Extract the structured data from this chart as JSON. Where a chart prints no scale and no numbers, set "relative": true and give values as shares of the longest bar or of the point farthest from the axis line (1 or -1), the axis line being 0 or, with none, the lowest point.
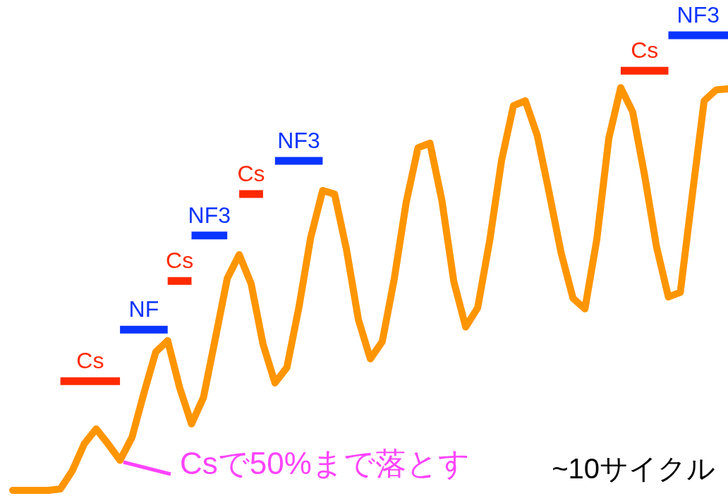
{
  "chart_data": {
    "type": "line",
    "relative": true,
    "categories": [
      null,
      null,
      null,
      null,
      null,
      null,
      null,
      null,
      null,
      null,
      null,
      null,
      null,
      null,
      null,
      null,
      null,
      null,
      null,
      null,
      null,
      null,
      null,
      null,
      null,
      null,
      null,
      null,
      null,
      null,
      null,
      null,
      null,
      null,
      null,
      null,
      null,
      null,
      null,
      null,
      null,
      null,
      null,
      null,
      null,
      null,
      null,
      null,
      null,
      null,
      null,
      null,
      null,
      null,
      null,
      null,
      null,
      null,
      null,
      null,
      null
    ],
    "series": [
      {
        "name": null,
        "color": "#ff9500",
        "values": [
          0,
          0,
          0,
          0,
          0.003,
          0.043,
          0.102,
          0.135,
          0.102,
          0.066,
          0.116,
          0.213,
          0.304,
          0.329,
          0.226,
          0.146,
          0.204,
          0.334,
          0.466,
          0.518,
          0.454,
          0.321,
          0.236,
          0.27,
          0.401,
          0.556,
          0.659,
          0.651,
          0.529,
          0.375,
          0.289,
          0.327,
          0.464,
          0.632,
          0.753,
          0.763,
          0.637,
          0.459,
          0.359,
          0.401,
          0.547,
          0.724,
          0.845,
          0.856,
          0.78,
          0.654,
          0.522,
          0.422,
          0.399,
          0.552,
          0.773,
          0.885,
          0.832,
          0.693,
          0.536,
          0.425,
          0.435,
          0.648,
          0.856,
          0.88,
          0.882
        ]
      },
      {
        "name": "Cs",
        "color": "#ff2a00",
        "values": [
          null,
          null,
          null,
          null,
          0.24,
          0.24,
          0.24,
          0.24,
          0.24,
          0.24,
          null,
          null,
          null,
          null,
          null,
          null,
          null,
          null,
          null,
          null,
          null,
          null,
          null,
          null,
          null,
          null,
          null,
          null,
          null,
          null,
          null,
          null,
          null,
          null,
          null,
          null,
          null,
          null,
          null,
          null,
          null,
          null,
          null,
          null,
          null,
          null,
          null,
          null,
          null,
          null,
          null,
          null,
          null,
          null,
          null,
          null,
          null,
          null,
          null,
          null,
          null
        ]
      },
      {
        "name": "NF",
        "color": "#0a34ff",
        "values": [
          null,
          null,
          null,
          null,
          null,
          null,
          null,
          null,
          null,
          0.353,
          0.353,
          0.353,
          0.353,
          0.353,
          null,
          null,
          null,
          null,
          null,
          null,
          null,
          null,
          null,
          null,
          null,
          null,
          null,
          null,
          null,
          null,
          null,
          null,
          null,
          null,
          null,
          null,
          null,
          null,
          null,
          null,
          null,
          null,
          null,
          null,
          null,
          null,
          null,
          null,
          null,
          null,
          null,
          null,
          null,
          null,
          null,
          null,
          null,
          null,
          null,
          null,
          null
        ]
      },
      {
        "name": "Cs",
        "color": "#ff2a00",
        "values": [
          null,
          null,
          null,
          null,
          null,
          null,
          null,
          null,
          null,
          null,
          null,
          null,
          null,
          0.46,
          0.46,
          0.46,
          null,
          null,
          null,
          null,
          null,
          null,
          null,
          null,
          null,
          null,
          null,
          null,
          null,
          null,
          null,
          null,
          null,
          null,
          null,
          null,
          null,
          null,
          null,
          null,
          null,
          null,
          null,
          null,
          null,
          null,
          null,
          null,
          null,
          null,
          null,
          null,
          null,
          null,
          null,
          null,
          null,
          null,
          null,
          null,
          null
        ]
      },
      {
        "name": "NF3",
        "color": "#0a34ff",
        "values": [
          null,
          null,
          null,
          null,
          null,
          null,
          null,
          null,
          null,
          null,
          null,
          null,
          null,
          null,
          null,
          0.56,
          0.56,
          0.56,
          0.56,
          null,
          null,
          null,
          null,
          null,
          null,
          null,
          null,
          null,
          null,
          null,
          null,
          null,
          null,
          null,
          null,
          null,
          null,
          null,
          null,
          null,
          null,
          null,
          null,
          null,
          null,
          null,
          null,
          null,
          null,
          null,
          null,
          null,
          null,
          null,
          null,
          null,
          null,
          null,
          null,
          null,
          null
        ]
      },
      {
        "name": "Cs",
        "color": "#ff2a00",
        "values": [
          null,
          null,
          null,
          null,
          null,
          null,
          null,
          null,
          null,
          null,
          null,
          null,
          null,
          null,
          null,
          null,
          null,
          null,
          null,
          0.651,
          0.651,
          0.651,
          null,
          null,
          null,
          null,
          null,
          null,
          null,
          null,
          null,
          null,
          null,
          null,
          null,
          null,
          null,
          null,
          null,
          null,
          null,
          null,
          null,
          null,
          null,
          null,
          null,
          null,
          null,
          null,
          null,
          null,
          null,
          null,
          null,
          null,
          null,
          null,
          null,
          null,
          null
        ]
      },
      {
        "name": "NF3",
        "color": "#0a34ff",
        "values": [
          null,
          null,
          null,
          null,
          null,
          null,
          null,
          null,
          null,
          null,
          null,
          null,
          null,
          null,
          null,
          null,
          null,
          null,
          null,
          null,
          null,
          null,
          0.724,
          0.724,
          0.724,
          0.724,
          0.724,
          null,
          null,
          null,
          null,
          null,
          null,
          null,
          null,
          null,
          null,
          null,
          null,
          null,
          null,
          null,
          null,
          null,
          null,
          null,
          null,
          null,
          null,
          null,
          null,
          null,
          null,
          null,
          null,
          null,
          null,
          null,
          null,
          null,
          null
        ]
      },
      {
        "name": "Cs",
        "color": "#ff2a00",
        "values": [
          null,
          null,
          null,
          null,
          null,
          null,
          null,
          null,
          null,
          null,
          null,
          null,
          null,
          null,
          null,
          null,
          null,
          null,
          null,
          null,
          null,
          null,
          null,
          null,
          null,
          null,
          null,
          null,
          null,
          null,
          null,
          null,
          null,
          null,
          null,
          null,
          null,
          null,
          null,
          null,
          null,
          null,
          null,
          null,
          null,
          null,
          null,
          null,
          null,
          null,
          null,
          0.922,
          0.922,
          0.922,
          0.922,
          0.922,
          null,
          null,
          null,
          null,
          null
        ]
      },
      {
        "name": "NF3",
        "color": "#0a34ff",
        "values": [
          null,
          null,
          null,
          null,
          null,
          null,
          null,
          null,
          null,
          null,
          null,
          null,
          null,
          null,
          null,
          null,
          null,
          null,
          null,
          null,
          null,
          null,
          null,
          null,
          null,
          null,
          null,
          null,
          null,
          null,
          null,
          null,
          null,
          null,
          null,
          null,
          null,
          null,
          null,
          null,
          null,
          null,
          null,
          null,
          null,
          null,
          null,
          null,
          null,
          null,
          null,
          null,
          null,
          null,
          null,
          1.0,
          1.0,
          1.0,
          1.0,
          1.0,
          1.0
        ]
      }
    ],
    "annotations": [
      "Csで50%まで落とす",
      "~10サイクル"
    ]
  }
}
